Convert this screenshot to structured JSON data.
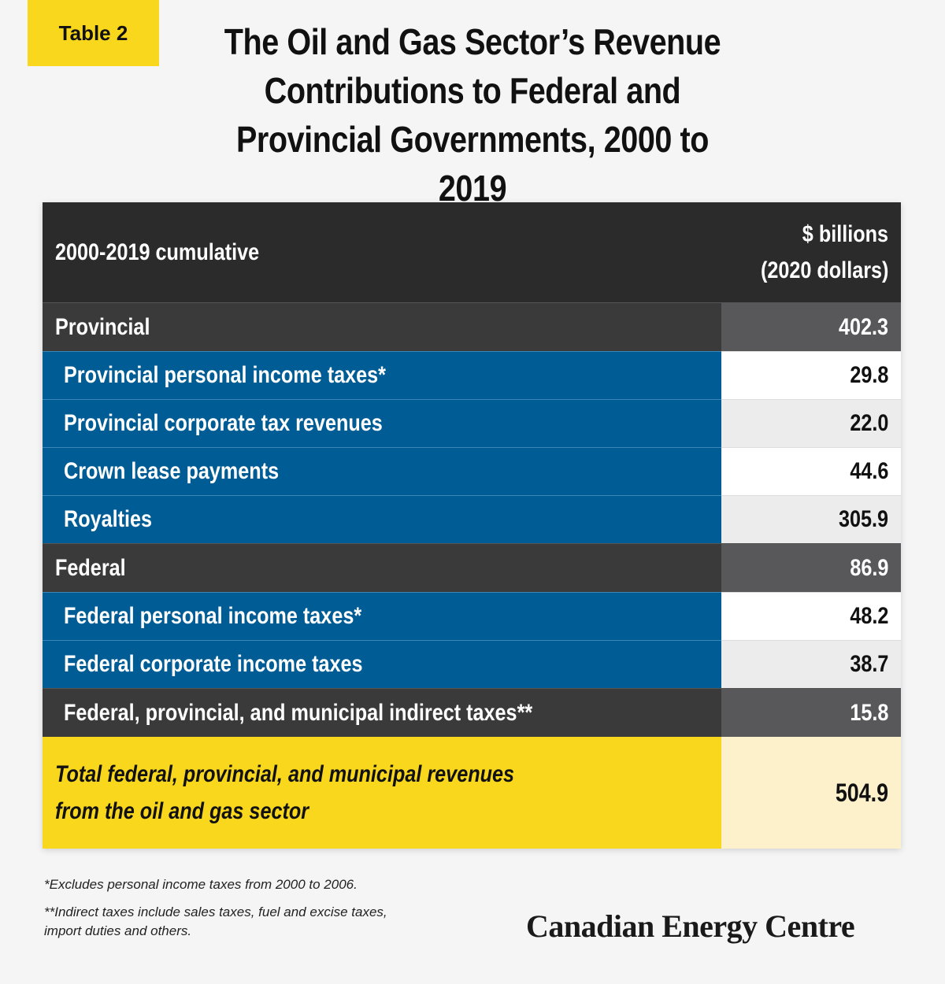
{
  "badge": "Table 2",
  "title": {
    "line1": "The Oil and Gas Sector’s Revenue",
    "line2": "Contributions to Federal and",
    "line3": "Provincial Governments, 2000 to 2019"
  },
  "table": {
    "header": {
      "label": "2000-2019 cumulative",
      "unit_line1": "$ billions",
      "unit_line2": "(2020 dollars)"
    },
    "rows": [
      {
        "label": "Provincial",
        "value": "402.3"
      },
      {
        "label": "Provincial personal income taxes*",
        "value": "29.8"
      },
      {
        "label": "Provincial corporate tax revenues",
        "value": "22.0"
      },
      {
        "label": "Crown lease payments",
        "value": "44.6"
      },
      {
        "label": "Royalties",
        "value": "305.9"
      },
      {
        "label": "Federal",
        "value": "86.9"
      },
      {
        "label": "Federal personal income taxes*",
        "value": "48.2"
      },
      {
        "label": "Federal corporate income taxes",
        "value": "38.7"
      },
      {
        "label": "Federal, provincial, and municipal indirect taxes**",
        "value": "15.8"
      }
    ],
    "total": {
      "label_line1": "Total federal, provincial, and municipal revenues",
      "label_line2": "from the oil and gas sector",
      "value": "504.9"
    }
  },
  "footnotes": {
    "note1": "*Excludes personal income taxes from 2000 to 2006.",
    "note2_line1": "**Indirect taxes include sales taxes, fuel and excise taxes,",
    "note2_line2": "import duties and others."
  },
  "logo": "Canadian Energy Centre",
  "colors": {
    "accent_yellow": "#f9d71c",
    "header_dark": "#2b2b2b",
    "row_blue": "#005c94",
    "total_value_bg": "#fdf1cc"
  }
}
